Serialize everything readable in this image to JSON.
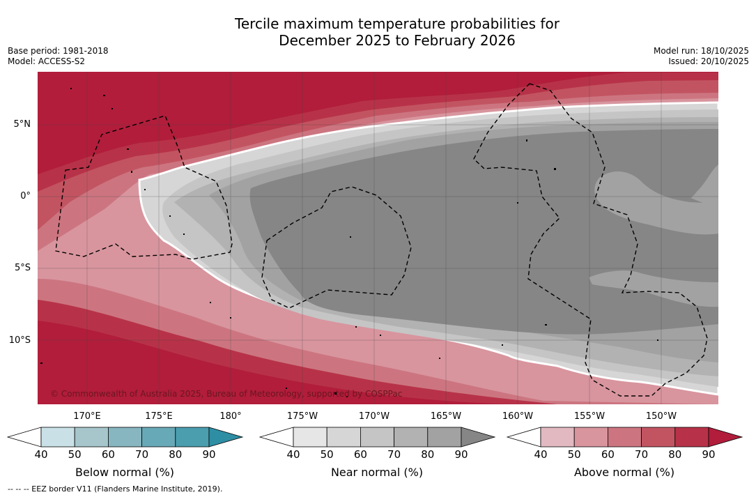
{
  "title": {
    "line1": "Tercile maximum temperature probabilities for",
    "line2": "December 2025 to February 2026"
  },
  "meta": {
    "base_period": "Base period: 1981-2018",
    "model": "Model: ACCESS-S2",
    "model_run": "Model run: 18/10/2025",
    "issued": "Issued: 20/10/2025"
  },
  "axes": {
    "lat_labels": [
      "5°N",
      "0°",
      "5°S",
      "10°S"
    ],
    "lon_labels": [
      "170°E",
      "175°E",
      "180°",
      "175°W",
      "170°W",
      "165°W",
      "160°W",
      "155°W",
      "150°W"
    ]
  },
  "copyright": "© Commonwealth of Australia 2025, Bureau of Meteorology, supported by COSPPac",
  "colorbars": [
    {
      "title": "Below normal (%)",
      "ticks": [
        "40",
        "50",
        "60",
        "70",
        "80",
        "90"
      ],
      "colors": [
        "#ffffff",
        "#c9e1e6",
        "#a6c6cc",
        "#87b6c0",
        "#68a9b7",
        "#4a9eae",
        "#2e8ea4"
      ]
    },
    {
      "title": "Near normal (%)",
      "ticks": [
        "40",
        "50",
        "60",
        "70",
        "80",
        "90"
      ],
      "colors": [
        "#ffffff",
        "#e6e6e6",
        "#d6d6d6",
        "#c5c5c5",
        "#b2b2b2",
        "#a2a2a2",
        "#868686"
      ]
    },
    {
      "title": "Above normal (%)",
      "ticks": [
        "40",
        "50",
        "60",
        "70",
        "80",
        "90"
      ],
      "colors": [
        "#ffffff",
        "#e2b9c1",
        "#d8959e",
        "#cc7580",
        "#c25461",
        "#b73248",
        "#b11d3b"
      ]
    }
  ],
  "eez_note": "--  --  -- EEZ border V11 (Flanders Marine Institute, 2019).",
  "map_colors": {
    "above90": "#b11d3b",
    "above80": "#b73248",
    "above70": "#c25461",
    "above60": "#cc7580",
    "above50": "#d8959e",
    "near50": "#d6d6d6",
    "near60": "#c5c5c5",
    "near70": "#b2b2b2",
    "near80": "#a2a2a2",
    "near90": "#868686"
  }
}
